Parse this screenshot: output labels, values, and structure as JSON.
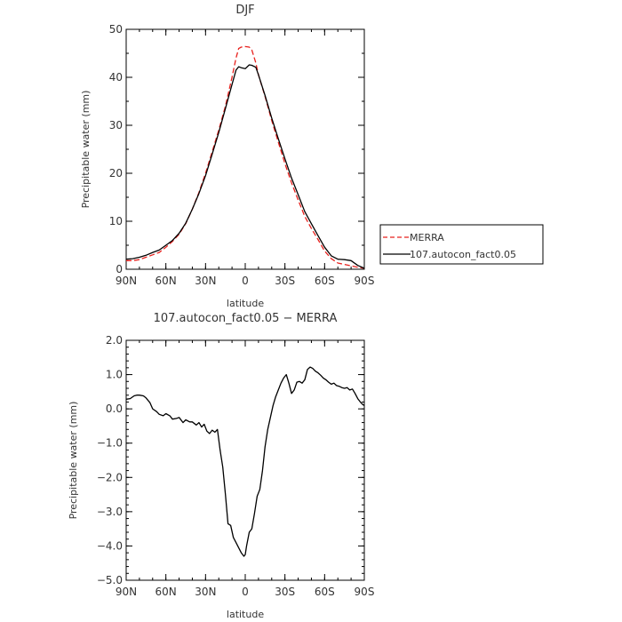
{
  "chart_data": [
    {
      "type": "line",
      "title": "DJF",
      "xlabel": "latitude",
      "ylabel": "Precipitable water (mm)",
      "xlim": [
        90,
        -90
      ],
      "ylim": [
        0,
        50
      ],
      "x_ticks": [
        {
          "value": 90,
          "label": "90N"
        },
        {
          "value": 60,
          "label": "60N"
        },
        {
          "value": 30,
          "label": "30N"
        },
        {
          "value": 0,
          "label": "0"
        },
        {
          "value": -30,
          "label": "30S"
        },
        {
          "value": -60,
          "label": "60S"
        },
        {
          "value": -90,
          "label": "90S"
        }
      ],
      "y_ticks": [
        {
          "value": 0,
          "label": "0"
        },
        {
          "value": 10,
          "label": "10"
        },
        {
          "value": 20,
          "label": "20"
        },
        {
          "value": 30,
          "label": "30"
        },
        {
          "value": 40,
          "label": "40"
        },
        {
          "value": 50,
          "label": "50"
        }
      ],
      "legend_placement": "right",
      "series": [
        {
          "name": "MERRA",
          "color": "#e8211d",
          "dash": "dashed",
          "x": [
            90,
            85,
            80,
            75,
            70,
            65,
            60,
            55,
            50,
            45,
            40,
            35,
            30,
            25,
            20,
            15,
            10,
            7,
            5,
            3,
            0,
            -3,
            -5,
            -8,
            -10,
            -15,
            -20,
            -25,
            -30,
            -35,
            -40,
            -45,
            -50,
            -55,
            -60,
            -65,
            -70,
            -75,
            -80,
            -85,
            -90
          ],
          "y": [
            1.8,
            1.8,
            2.0,
            2.5,
            3.0,
            3.5,
            4.6,
            5.8,
            7.3,
            9.5,
            12.5,
            16,
            20,
            24.5,
            29,
            34,
            40,
            44,
            46,
            46.3,
            46.4,
            46.3,
            45.7,
            43,
            40.5,
            36,
            31,
            26.5,
            22,
            18,
            14.4,
            11,
            8.5,
            6.2,
            3.8,
            2.2,
            1.3,
            1.0,
            0.7,
            0.4,
            0.2
          ]
        },
        {
          "name": "107.autocon_fact0.05",
          "color": "#000000",
          "dash": "solid",
          "x": [
            90,
            85,
            80,
            75,
            70,
            65,
            60,
            55,
            50,
            45,
            40,
            35,
            30,
            25,
            20,
            15,
            10,
            7,
            5,
            3,
            0,
            -3,
            -5,
            -8,
            -10,
            -15,
            -20,
            -25,
            -30,
            -35,
            -40,
            -45,
            -50,
            -55,
            -60,
            -65,
            -70,
            -75,
            -80,
            -85,
            -90
          ],
          "y": [
            2.1,
            2.2,
            2.5,
            2.9,
            3.5,
            4.0,
            5.0,
            6.0,
            7.5,
            9.6,
            12.5,
            15.8,
            19.5,
            24,
            28.5,
            33.5,
            38.5,
            41.5,
            42.2,
            42.0,
            41.8,
            42.6,
            42.5,
            42.1,
            40.5,
            36.2,
            31.5,
            27.2,
            23,
            19,
            15.5,
            12,
            9.5,
            7.0,
            4.6,
            2.8,
            2.1,
            2.0,
            1.8,
            0.8,
            0.2
          ]
        }
      ]
    },
    {
      "type": "line",
      "title": "107.autocon_fact0.05 − MERRA",
      "xlabel": "latitude",
      "ylabel": "Precipitable water (mm)",
      "xlim": [
        90,
        -90
      ],
      "ylim": [
        -5,
        2
      ],
      "x_ticks": [
        {
          "value": 90,
          "label": "90N"
        },
        {
          "value": 60,
          "label": "60N"
        },
        {
          "value": 30,
          "label": "30N"
        },
        {
          "value": 0,
          "label": "0"
        },
        {
          "value": -30,
          "label": "30S"
        },
        {
          "value": -60,
          "label": "60S"
        },
        {
          "value": -90,
          "label": "90S"
        }
      ],
      "y_ticks": [
        {
          "value": 2,
          "label": "2.0"
        },
        {
          "value": 1,
          "label": "1.0"
        },
        {
          "value": 0,
          "label": "0.0"
        },
        {
          "value": -1,
          "label": "−1.0"
        },
        {
          "value": -2,
          "label": "−2.0"
        },
        {
          "value": -3,
          "label": "−3.0"
        },
        {
          "value": -4,
          "label": "−4.0"
        },
        {
          "value": -5,
          "label": "−5.0"
        }
      ],
      "series": [
        {
          "color": "#000000",
          "dash": "solid",
          "x": [
            90,
            87,
            84,
            82,
            80,
            77,
            75,
            72,
            70,
            67,
            65,
            62,
            60,
            57,
            55,
            52,
            50,
            47,
            45,
            42,
            40,
            37,
            35,
            33,
            31,
            29,
            27,
            25,
            23,
            21,
            19,
            17,
            15,
            13,
            11,
            9,
            7,
            5,
            3,
            1,
            0,
            -1,
            -3,
            -5,
            -7,
            -9,
            -11,
            -13,
            -15,
            -17,
            -19,
            -21,
            -23,
            -25,
            -27,
            -29,
            -31,
            -33,
            -35,
            -37,
            -39,
            -41,
            -43,
            -45,
            -47,
            -49,
            -51,
            -53,
            -55,
            -57,
            -59,
            -61,
            -63,
            -65,
            -67,
            -69,
            -71,
            -73,
            -75,
            -77,
            -79,
            -81,
            -83,
            -85,
            -87,
            -89,
            -90
          ],
          "y": [
            0.28,
            0.3,
            0.38,
            0.4,
            0.4,
            0.38,
            0.32,
            0.18,
            0.0,
            -0.08,
            -0.16,
            -0.2,
            -0.14,
            -0.2,
            -0.3,
            -0.28,
            -0.25,
            -0.4,
            -0.32,
            -0.38,
            -0.38,
            -0.47,
            -0.4,
            -0.53,
            -0.45,
            -0.65,
            -0.72,
            -0.62,
            -0.68,
            -0.6,
            -1.2,
            -1.7,
            -2.5,
            -3.35,
            -3.4,
            -3.75,
            -3.9,
            -4.05,
            -4.2,
            -4.3,
            -4.25,
            -4.0,
            -3.6,
            -3.5,
            -3.05,
            -2.55,
            -2.35,
            -1.8,
            -1.1,
            -0.6,
            -0.25,
            0.1,
            0.35,
            0.55,
            0.75,
            0.9,
            1.0,
            0.75,
            0.45,
            0.55,
            0.78,
            0.8,
            0.75,
            0.85,
            1.15,
            1.22,
            1.18,
            1.1,
            1.05,
            0.98,
            0.9,
            0.85,
            0.78,
            0.72,
            0.75,
            0.68,
            0.66,
            0.62,
            0.6,
            0.62,
            0.55,
            0.58,
            0.45,
            0.3,
            0.2,
            0.12,
            0.1
          ]
        }
      ]
    }
  ]
}
